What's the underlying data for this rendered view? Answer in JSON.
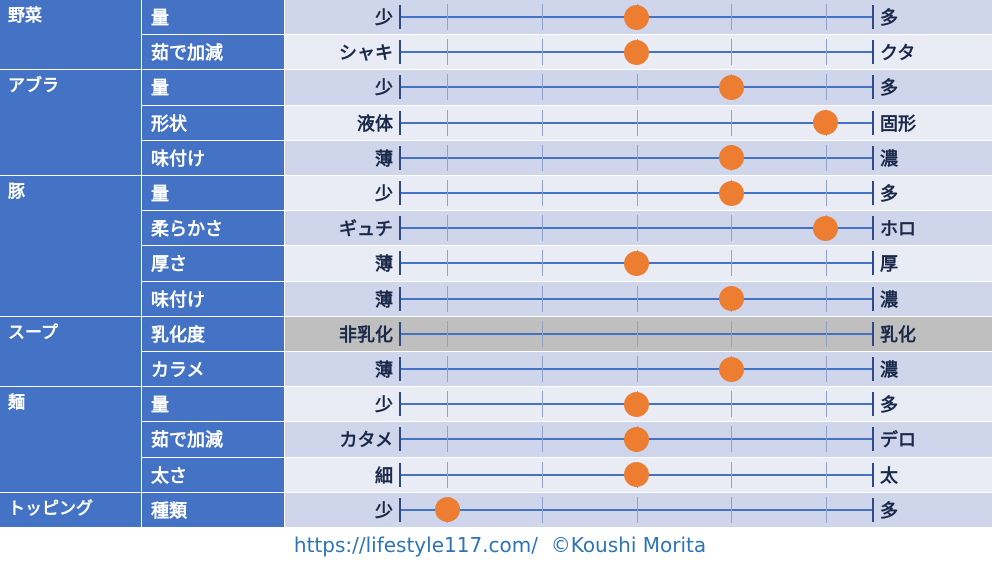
{
  "chart_data": {
    "type": "table",
    "scale": {
      "min": 1,
      "max": 5
    },
    "groups": [
      {
        "category": "野菜",
        "rows": [
          {
            "item": "量",
            "low": "少",
            "high": "多",
            "value": 3
          },
          {
            "item": "茹で加減",
            "low": "シャキ",
            "high": "クタ",
            "value": 3
          }
        ]
      },
      {
        "category": "アブラ",
        "rows": [
          {
            "item": "量",
            "low": "少",
            "high": "多",
            "value": 4
          },
          {
            "item": "形状",
            "low": "液体",
            "high": "固形",
            "value": 5
          },
          {
            "item": "味付け",
            "low": "薄",
            "high": "濃",
            "value": 4
          }
        ]
      },
      {
        "category": "豚",
        "rows": [
          {
            "item": "量",
            "low": "少",
            "high": "多",
            "value": 4
          },
          {
            "item": "柔らかさ",
            "low": "ギュチ",
            "high": "ホロ",
            "value": 5
          },
          {
            "item": "厚さ",
            "low": "薄",
            "high": "厚",
            "value": 3
          },
          {
            "item": "味付け",
            "low": "薄",
            "high": "濃",
            "value": 4
          }
        ]
      },
      {
        "category": "スープ",
        "rows": [
          {
            "item": "乳化度",
            "low": "非乳化",
            "high": "乳化",
            "value": null,
            "shaded": true
          },
          {
            "item": "カラメ",
            "low": "薄",
            "high": "濃",
            "value": 4
          }
        ]
      },
      {
        "category": "麺",
        "rows": [
          {
            "item": "量",
            "low": "少",
            "high": "多",
            "value": 3
          },
          {
            "item": "茹で加減",
            "low": "カタメ",
            "high": "デロ",
            "value": 3
          },
          {
            "item": "太さ",
            "low": "細",
            "high": "太",
            "value": 3
          }
        ]
      },
      {
        "category": "トッピング",
        "rows": [
          {
            "item": "種類",
            "low": "少",
            "high": "多",
            "value": 1
          }
        ]
      }
    ]
  },
  "footer": {
    "text": "https://lifestyle117.com/  ©Koushi Morita"
  },
  "colors": {
    "header_bg": "#4472C4",
    "header_text": "#FFFFFF",
    "row_dark": "#CFD5EA",
    "row_light": "#E9EBF5",
    "row_shaded": "#BFBFBF",
    "line": "#4472C4",
    "tick": "#8FA2C7",
    "cap": "#2F4A86",
    "dot": "#ED7D31",
    "label_text": "#1B2A4A",
    "footer_text": "#2E75B6"
  }
}
